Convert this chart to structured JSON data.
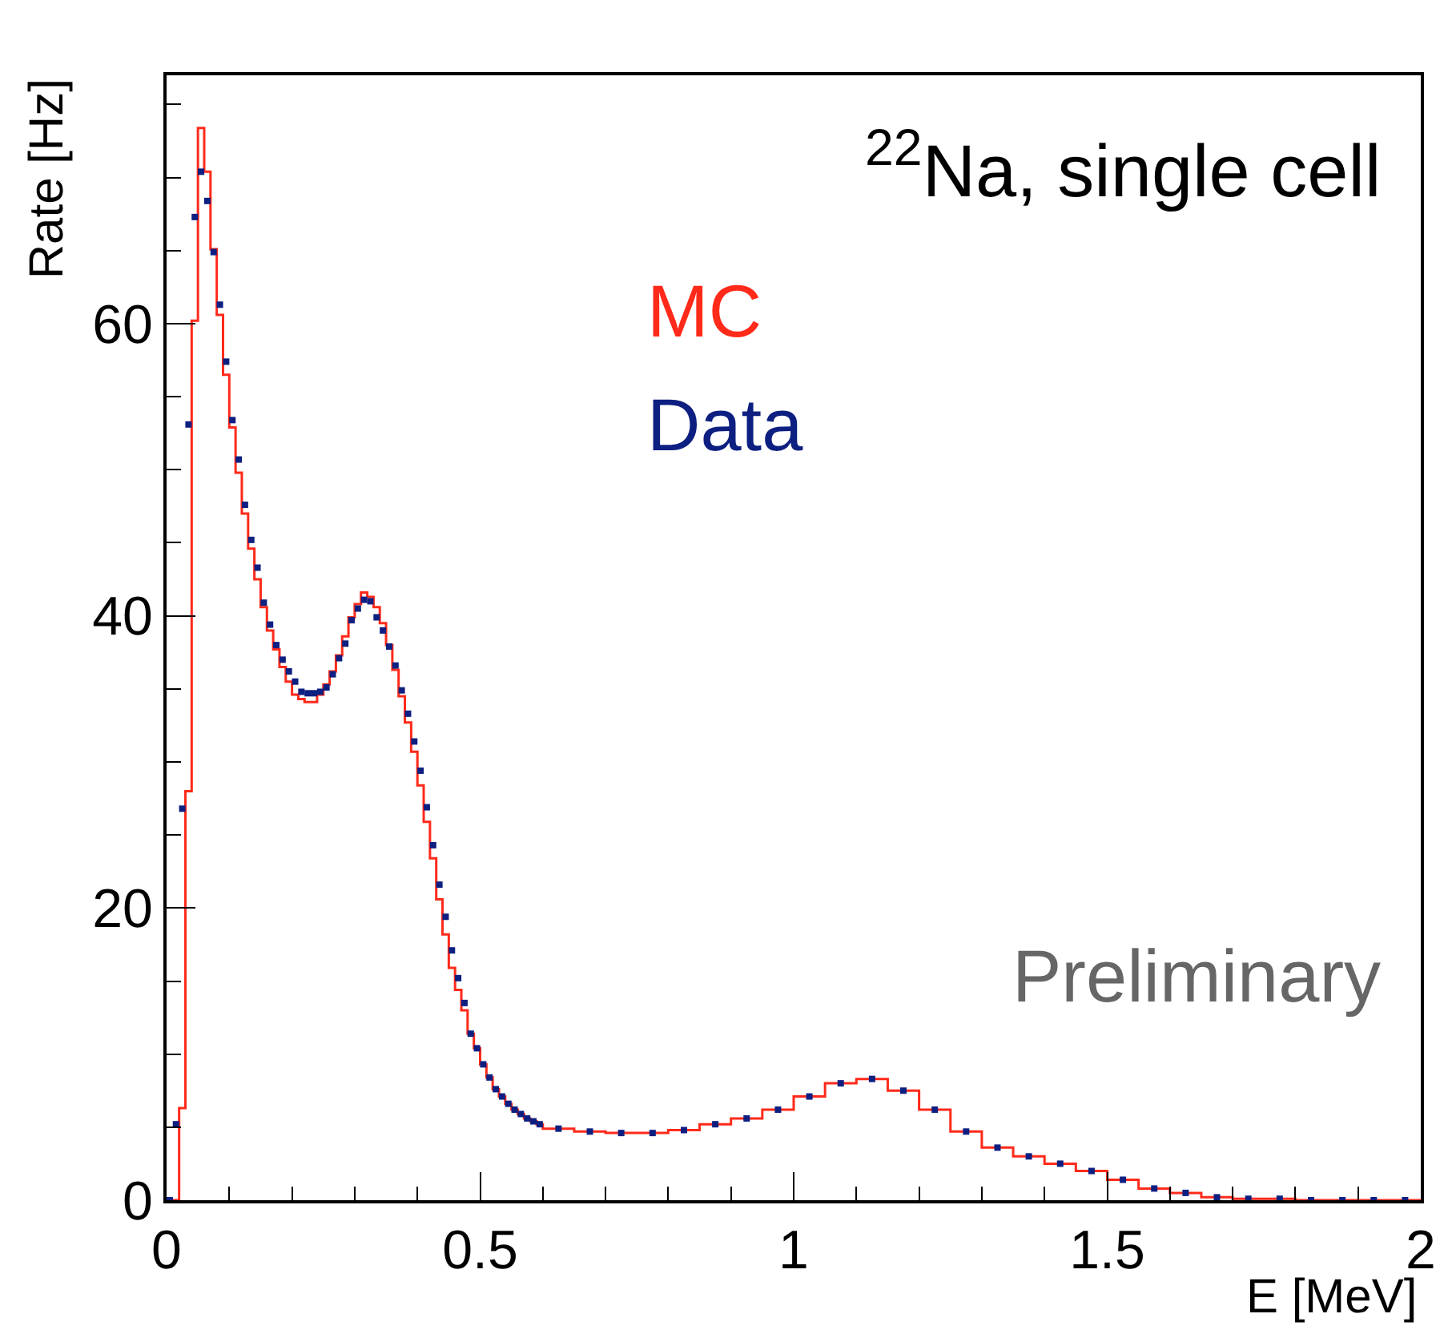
{
  "chart_data": {
    "type": "histogram",
    "xlabel": "E [MeV]",
    "ylabel": "Rate [Hz]",
    "annotations": [
      "$^{22}$Na, single cell",
      "Preliminary"
    ],
    "bins": [
      0,
      0.01,
      0.02,
      0.03,
      0.04,
      0.05,
      0.06,
      0.07,
      0.08,
      0.09,
      0.1,
      0.11,
      0.12,
      0.13,
      0.14,
      0.15,
      0.16,
      0.17,
      0.18,
      0.19,
      0.2,
      0.21,
      0.22,
      0.23,
      0.24,
      0.25,
      0.26,
      0.27,
      0.28,
      0.29,
      0.3,
      0.31,
      0.32,
      0.33,
      0.34,
      0.35,
      0.36,
      0.37,
      0.38,
      0.39,
      0.4,
      0.41,
      0.42,
      0.43,
      0.44,
      0.45,
      0.46,
      0.47,
      0.48,
      0.49,
      0.5,
      0.51,
      0.52,
      0.53,
      0.54,
      0.55,
      0.56,
      0.57,
      0.58,
      0.59,
      0.6,
      0.65,
      0.7,
      0.75,
      0.8,
      0.85,
      0.9,
      0.95,
      1.0,
      1.05,
      1.1,
      1.15,
      1.2,
      1.25,
      1.3,
      1.35,
      1.4,
      1.45,
      1.5,
      1.55,
      1.6,
      1.65,
      1.7,
      1.75,
      1.8,
      1.85,
      1.9,
      1.95,
      2.0
    ],
    "series": [
      {
        "name": "MC",
        "color": "#ff2a1a",
        "values": [
          0,
          0,
          6.3,
          28.0,
          60.2,
          73.4,
          70.4,
          65.1,
          60.6,
          56.5,
          52.9,
          49.8,
          47.0,
          44.6,
          42.5,
          40.6,
          39.0,
          37.7,
          36.5,
          35.5,
          34.6,
          34.3,
          34.1,
          34.1,
          34.6,
          35.3,
          36.2,
          37.3,
          38.6,
          39.9,
          40.8,
          41.6,
          41.3,
          40.6,
          39.5,
          38.0,
          36.3,
          34.5,
          32.7,
          30.7,
          28.4,
          25.9,
          23.4,
          20.6,
          18.2,
          15.9,
          14.4,
          13.0,
          11.4,
          10.4,
          9.3,
          8.4,
          7.6,
          7.1,
          6.6,
          6.2,
          5.9,
          5.6,
          5.4,
          5.2,
          4.9,
          4.7,
          4.6,
          4.6,
          4.8,
          5.2,
          5.6,
          6.2,
          7.1,
          8.0,
          8.3,
          7.5,
          6.2,
          4.7,
          3.6,
          3.0,
          2.5,
          2.0,
          1.4,
          0.8,
          0.5,
          0.2,
          0.1,
          0.1,
          0,
          0,
          0,
          0
        ]
      },
      {
        "name": "Data",
        "type": "scatter",
        "marker": "square",
        "color": "#0d1f80",
        "x": [
          0.005,
          0.015,
          0.025,
          0.035,
          0.045,
          0.055,
          0.065,
          0.075,
          0.085,
          0.095,
          0.105,
          0.115,
          0.125,
          0.135,
          0.145,
          0.155,
          0.165,
          0.175,
          0.185,
          0.195,
          0.205,
          0.215,
          0.225,
          0.235,
          0.245,
          0.255,
          0.265,
          0.275,
          0.285,
          0.295,
          0.305,
          0.315,
          0.325,
          0.335,
          0.345,
          0.355,
          0.365,
          0.375,
          0.385,
          0.395,
          0.405,
          0.415,
          0.425,
          0.435,
          0.445,
          0.455,
          0.465,
          0.475,
          0.485,
          0.495,
          0.505,
          0.515,
          0.525,
          0.535,
          0.545,
          0.555,
          0.565,
          0.575,
          0.585,
          0.595,
          0.625,
          0.675,
          0.725,
          0.775,
          0.825,
          0.875,
          0.925,
          0.975,
          1.025,
          1.075,
          1.125,
          1.175,
          1.225,
          1.275,
          1.325,
          1.375,
          1.425,
          1.475,
          1.525,
          1.575,
          1.625,
          1.675,
          1.725,
          1.775,
          1.825,
          1.875,
          1.925,
          1.975
        ],
        "values": [
          0,
          5.2,
          26.8,
          53.1,
          67.3,
          70.4,
          68.4,
          64.9,
          61.3,
          57.4,
          53.4,
          50.7,
          47.6,
          45.2,
          43.3,
          40.9,
          39.4,
          38.0,
          37.0,
          36.2,
          35.5,
          34.8,
          34.7,
          34.7,
          34.8,
          35.1,
          36.0,
          37.1,
          38.1,
          39.7,
          40.5,
          41.1,
          41.0,
          39.9,
          39.0,
          37.9,
          36.6,
          34.9,
          33.3,
          31.4,
          29.4,
          26.9,
          24.3,
          21.6,
          19.4,
          17.1,
          15.2,
          13.5,
          11.4,
          10.4,
          9.3,
          8.4,
          7.6,
          7.1,
          6.6,
          6.2,
          5.9,
          5.6,
          5.4,
          5.2,
          4.9,
          4.7,
          4.6,
          4.6,
          4.8,
          5.2,
          5.6,
          6.2,
          7.1,
          8.0,
          8.3,
          7.5,
          6.2,
          4.7,
          3.6,
          3.0,
          2.5,
          2.0,
          1.4,
          0.8,
          0.5,
          0.2,
          0.1,
          0.1,
          0,
          0,
          0,
          0
        ]
      }
    ],
    "xlim": [
      0,
      2
    ],
    "xticks": [
      0,
      0.5,
      1,
      1.5,
      2
    ],
    "ylim": [
      0,
      77
    ],
    "yticks": [
      0,
      20,
      40,
      60
    ],
    "legend": "top"
  }
}
